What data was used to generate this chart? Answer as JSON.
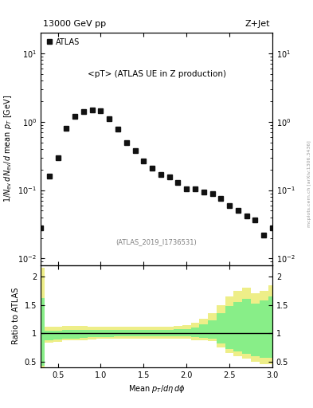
{
  "title_left": "13000 GeV pp",
  "title_right": "Z+Jet",
  "annotation": "<pT> (ATLAS UE in Z production)",
  "ref_label": "(ATLAS_2019_I1736531)",
  "ylabel_main": "1/N_{ev} dN_{ev}/d mean p_{T} [GeV]",
  "ylabel_ratio": "Ratio to ATLAS",
  "xlabel": "Mean p_{T}/dη dϕ",
  "watermark": "mcplots.cern.ch [arXiv:1306.3436]",
  "legend_label": "ATLAS",
  "data_x": [
    0.3,
    0.4,
    0.5,
    0.6,
    0.7,
    0.8,
    0.9,
    1.0,
    1.1,
    1.2,
    1.3,
    1.4,
    1.5,
    1.6,
    1.7,
    1.8,
    1.9,
    2.0,
    2.1,
    2.2,
    2.3,
    2.4,
    2.5,
    2.6,
    2.7,
    2.8,
    2.9,
    3.0
  ],
  "data_y": [
    0.028,
    0.16,
    0.3,
    0.8,
    1.2,
    1.4,
    1.5,
    1.45,
    1.1,
    0.78,
    0.5,
    0.38,
    0.27,
    0.21,
    0.17,
    0.155,
    0.13,
    0.105,
    0.105,
    0.095,
    0.09,
    0.075,
    0.06,
    0.05,
    0.042,
    0.037,
    0.022,
    0.028
  ],
  "xlim": [
    0.3,
    3.0
  ],
  "ylim_main": [
    0.008,
    20
  ],
  "ylim_ratio": [
    0.4,
    2.2
  ],
  "ratio_yticks": [
    0.5,
    1.0,
    1.5,
    2.0
  ],
  "ratio_x": [
    0.3,
    0.4,
    0.5,
    0.6,
    0.7,
    0.8,
    0.9,
    1.0,
    1.1,
    1.2,
    1.3,
    1.4,
    1.5,
    1.6,
    1.7,
    1.8,
    1.9,
    2.0,
    2.1,
    2.2,
    2.3,
    2.4,
    2.5,
    2.6,
    2.7,
    2.8,
    2.9,
    3.0
  ],
  "ratio_yellow_lo": [
    0.37,
    0.83,
    0.85,
    0.87,
    0.88,
    0.88,
    0.89,
    0.9,
    0.9,
    0.9,
    0.9,
    0.9,
    0.9,
    0.9,
    0.9,
    0.9,
    0.9,
    0.9,
    0.88,
    0.88,
    0.86,
    0.75,
    0.65,
    0.6,
    0.55,
    0.5,
    0.45,
    0.45
  ],
  "ratio_yellow_hi": [
    2.15,
    1.12,
    1.12,
    1.13,
    1.13,
    1.13,
    1.12,
    1.12,
    1.12,
    1.12,
    1.12,
    1.12,
    1.12,
    1.12,
    1.12,
    1.12,
    1.13,
    1.14,
    1.18,
    1.25,
    1.35,
    1.5,
    1.65,
    1.75,
    1.8,
    1.7,
    1.75,
    1.85
  ],
  "ratio_green_lo": [
    0.42,
    0.88,
    0.89,
    0.91,
    0.91,
    0.92,
    0.93,
    0.93,
    0.93,
    0.94,
    0.94,
    0.94,
    0.94,
    0.94,
    0.94,
    0.94,
    0.94,
    0.95,
    0.93,
    0.92,
    0.9,
    0.82,
    0.72,
    0.68,
    0.63,
    0.6,
    0.57,
    0.57
  ],
  "ratio_green_hi": [
    1.62,
    1.05,
    1.05,
    1.06,
    1.06,
    1.06,
    1.06,
    1.06,
    1.06,
    1.06,
    1.06,
    1.06,
    1.06,
    1.06,
    1.06,
    1.06,
    1.07,
    1.07,
    1.1,
    1.15,
    1.22,
    1.35,
    1.48,
    1.55,
    1.6,
    1.52,
    1.58,
    1.65
  ],
  "marker_color": "#111111",
  "marker_size": 5,
  "yellow_color": "#eeee88",
  "green_color": "#88ee88",
  "bg_color": "#ffffff"
}
